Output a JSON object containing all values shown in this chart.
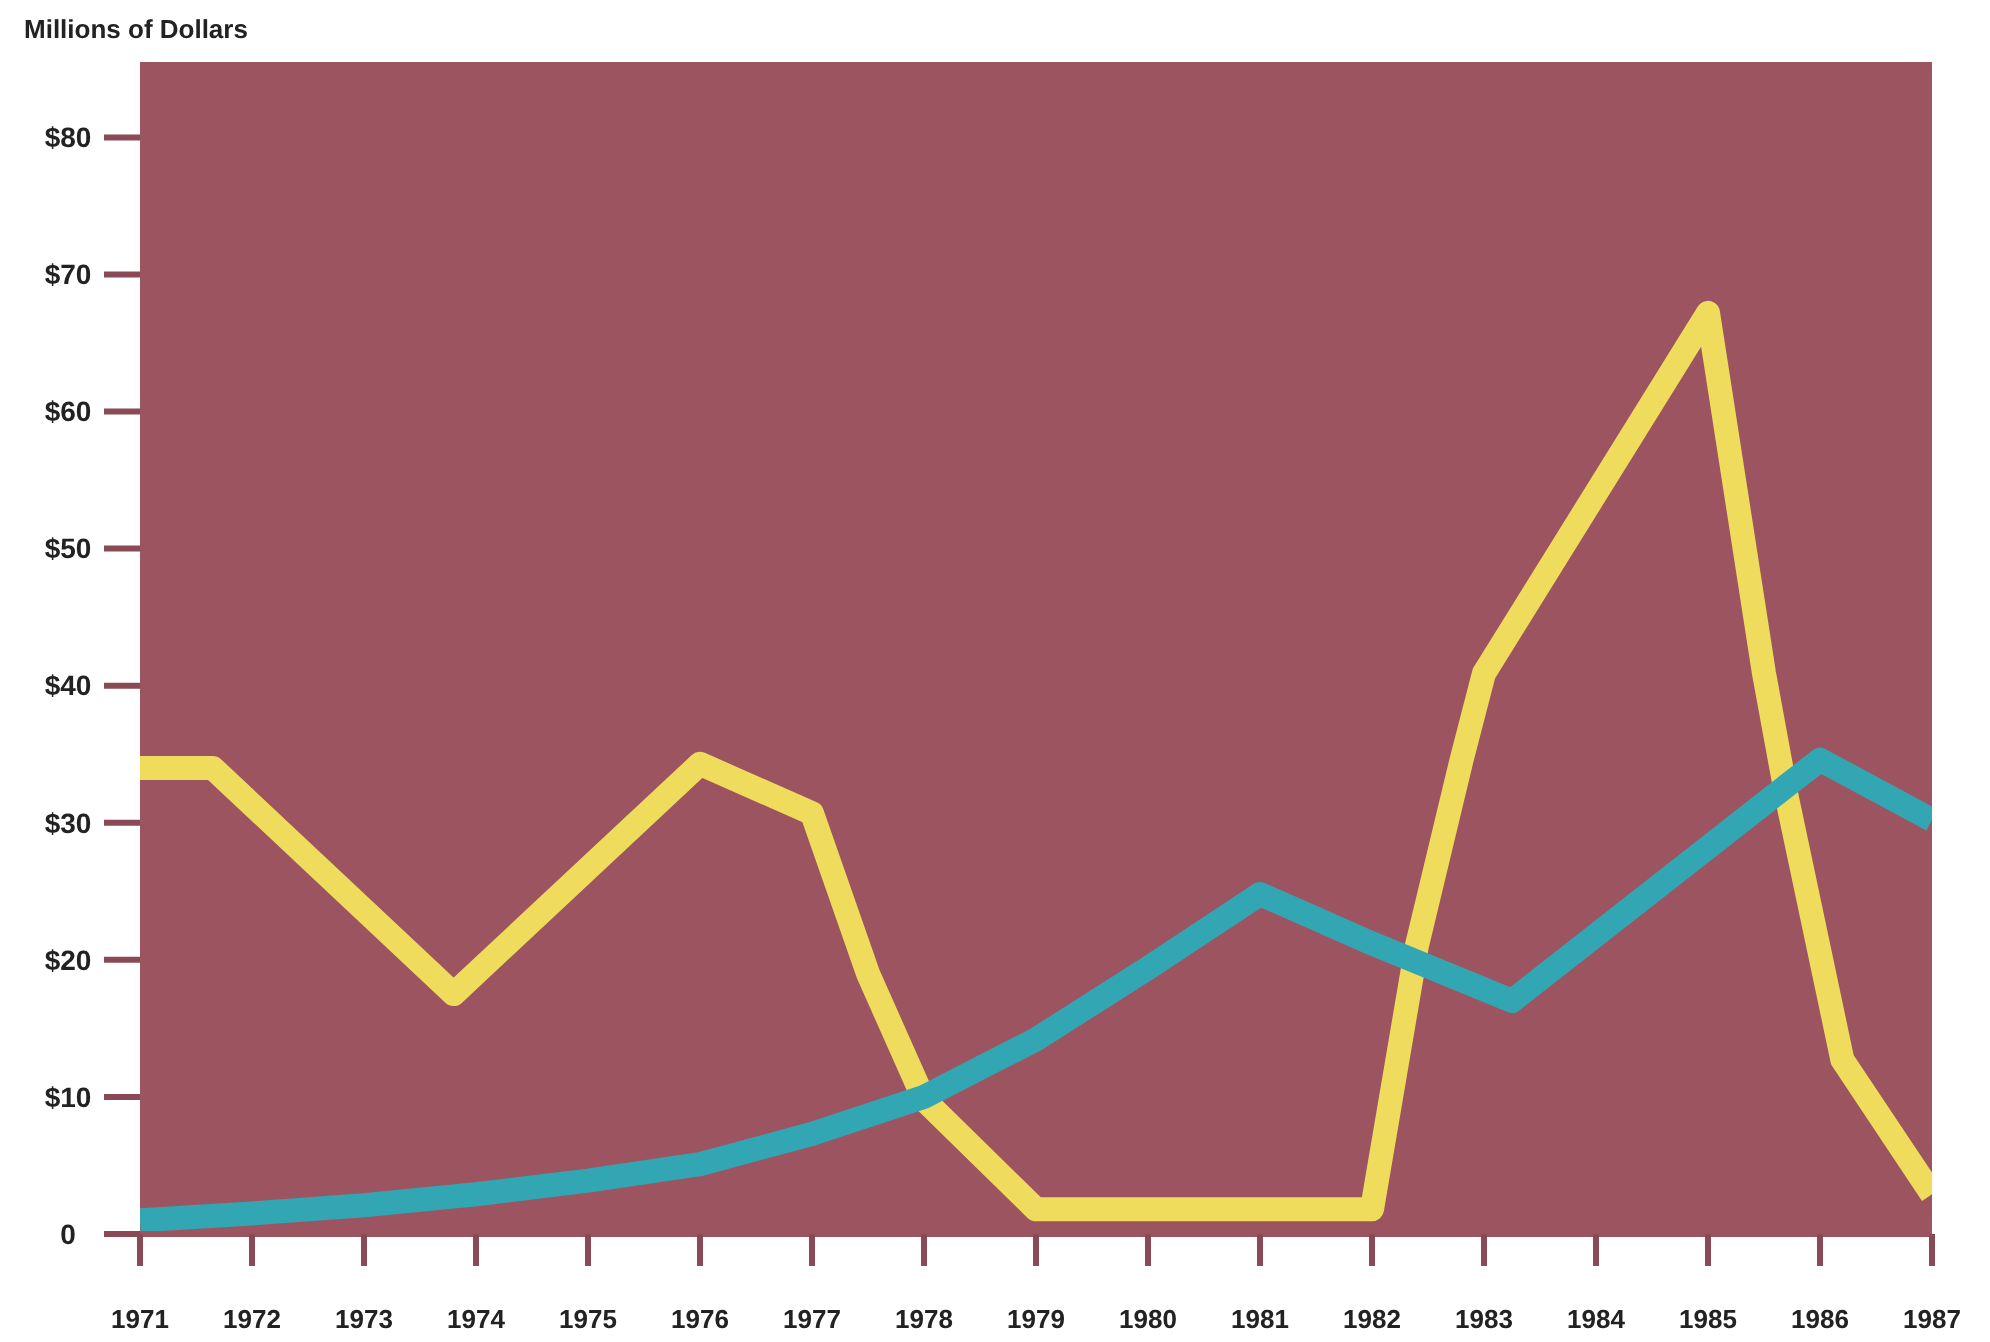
{
  "chart_data": {
    "type": "line",
    "ylabel": "Millions of Dollars",
    "xlim": [
      1971,
      1987
    ],
    "xticks": [
      1971,
      1972,
      1973,
      1974,
      1975,
      1976,
      1977,
      1978,
      1979,
      1980,
      1981,
      1982,
      1983,
      1984,
      1985,
      1986,
      1987
    ],
    "ylim": [
      0,
      85.5
    ],
    "yticks": [
      {
        "value": 0,
        "label": "0"
      },
      {
        "value": 10,
        "label": "$10"
      },
      {
        "value": 20,
        "label": "$20"
      },
      {
        "value": 30,
        "label": "$30"
      },
      {
        "value": 40,
        "label": "$40"
      },
      {
        "value": 50,
        "label": "$50"
      },
      {
        "value": 60,
        "label": "$60"
      },
      {
        "value": 70,
        "label": "$70"
      },
      {
        "value": 80,
        "label": "$80"
      }
    ],
    "grid": false,
    "marker": "none",
    "line_style": "solid",
    "series": [
      {
        "color": "#f0dc5c",
        "x": [
          1971,
          1971.65,
          1973.8,
          1976.0,
          1977.0,
          1977.5,
          1978.0,
          1979.0,
          1982.0,
          1982.4,
          1982.8,
          1983.0,
          1985.0,
          1985.5,
          1985.7,
          1986.2,
          1987
        ],
        "values": [
          34,
          34,
          17.5,
          34.3,
          30.7,
          19,
          9.8,
          1.8,
          1.8,
          21,
          34.6,
          40.9,
          67.2,
          40.9,
          32,
          12.7,
          2.9
        ]
      },
      {
        "color": "#33a6b4",
        "x": [
          1971,
          1972,
          1973,
          1974,
          1975,
          1976,
          1977,
          1978,
          1979,
          1980,
          1981,
          1982,
          1983.25,
          1986,
          1987
        ],
        "values": [
          1.0,
          1.5,
          2.1,
          2.9,
          3.9,
          5.1,
          7.3,
          10,
          14.2,
          19.4,
          24.8,
          21.2,
          17,
          34.6,
          30.2
        ]
      }
    ]
  }
}
